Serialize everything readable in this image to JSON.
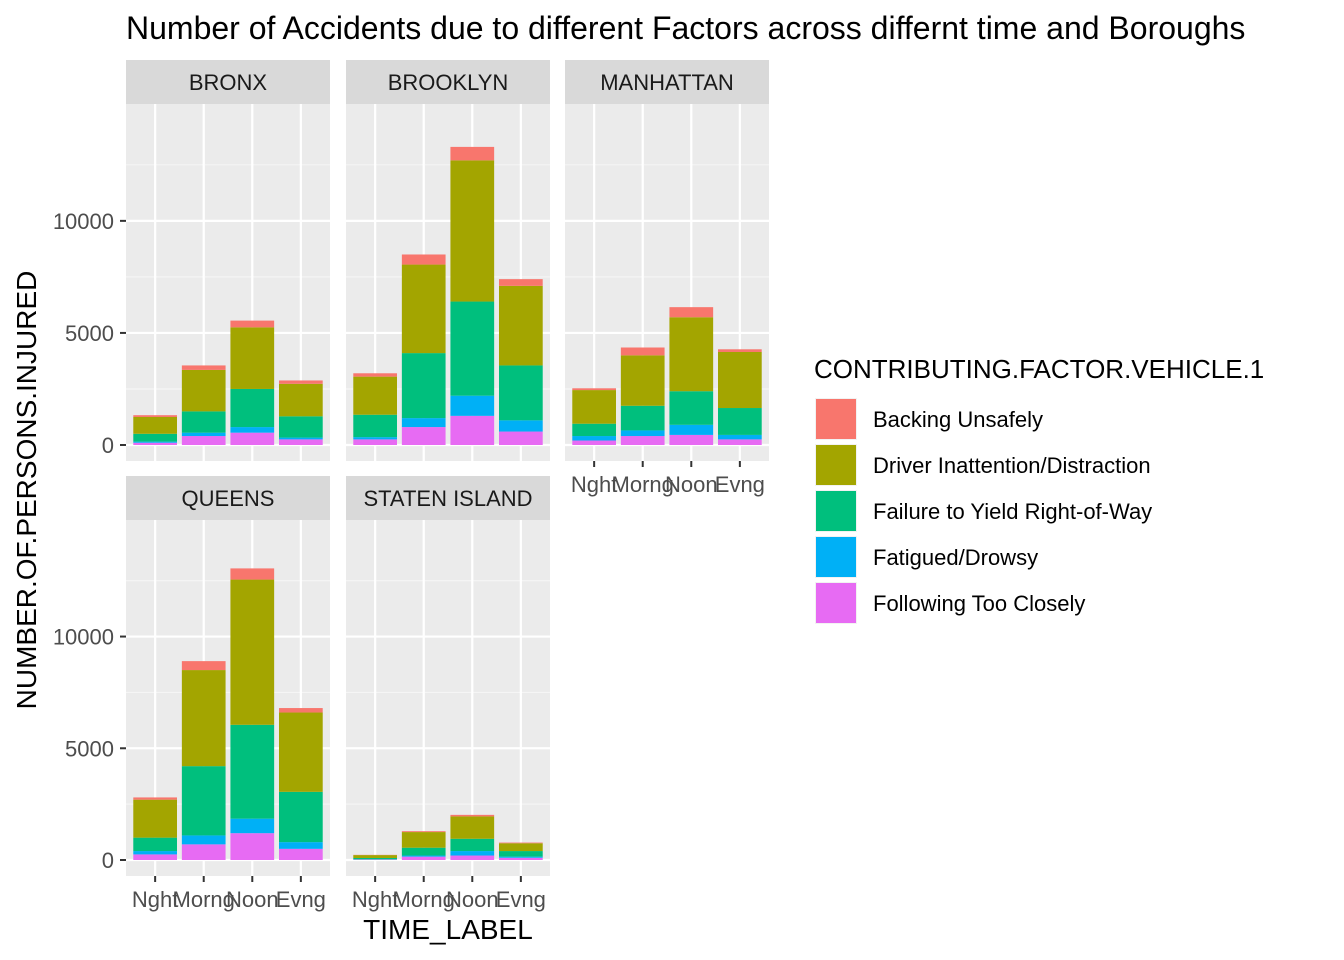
{
  "chart_data": {
    "type": "bar",
    "stacked": true,
    "faceted": true,
    "title": "Number of Accidents due to different Factors across differnt time and Boroughs",
    "xlabel": "TIME_LABEL",
    "ylabel": "NUMBER.OF.PERSONS.INJURED",
    "categories": [
      "Nght",
      "Morng",
      "Noon",
      "Evng"
    ],
    "ylim": [
      0,
      14500
    ],
    "yticks": [
      0,
      5000,
      10000
    ],
    "ytick_labels": [
      "0",
      "5000",
      "10000"
    ],
    "grid": true,
    "legend": {
      "title": "CONTRIBUTING.FACTOR.VEHICLE.1",
      "position": "right",
      "entries": [
        "Backing Unsafely",
        "Driver Inattention/Distraction",
        "Failure to Yield Right-of-Way",
        "Fatigued/Drowsy",
        "Following Too Closely"
      ]
    },
    "colors": {
      "Backing Unsafely": "#F8766D",
      "Driver Inattention/Distraction": "#A3A500",
      "Failure to Yield Right-of-Way": "#00BF7D",
      "Fatigued/Drowsy": "#00B0F6",
      "Following Too Closely": "#E76BF3"
    },
    "facets": [
      {
        "borough": "BRONX",
        "series": [
          {
            "name": "Following Too Closely",
            "values": [
              100,
              400,
              550,
              250
            ]
          },
          {
            "name": "Fatigued/Drowsy",
            "values": [
              50,
              150,
              250,
              80
            ]
          },
          {
            "name": "Failure to Yield Right-of-Way",
            "values": [
              350,
              950,
              1700,
              950
            ]
          },
          {
            "name": "Driver Inattention/Distraction",
            "values": [
              750,
              1850,
              2750,
              1450
            ]
          },
          {
            "name": "Backing Unsafely",
            "values": [
              80,
              200,
              300,
              150
            ]
          }
        ]
      },
      {
        "borough": "BROOKLYN",
        "series": [
          {
            "name": "Following Too Closely",
            "values": [
              250,
              800,
              1300,
              600
            ]
          },
          {
            "name": "Fatigued/Drowsy",
            "values": [
              100,
              400,
              900,
              500
            ]
          },
          {
            "name": "Failure to Yield Right-of-Way",
            "values": [
              1000,
              2900,
              4200,
              2450
            ]
          },
          {
            "name": "Driver Inattention/Distraction",
            "values": [
              1700,
              3950,
              6300,
              3550
            ]
          },
          {
            "name": "Backing Unsafely",
            "values": [
              150,
              450,
              600,
              300
            ]
          }
        ]
      },
      {
        "borough": "MANHATTAN",
        "series": [
          {
            "name": "Following Too Closely",
            "values": [
              200,
              400,
              450,
              250
            ]
          },
          {
            "name": "Fatigued/Drowsy",
            "values": [
              200,
              250,
              450,
              200
            ]
          },
          {
            "name": "Failure to Yield Right-of-Way",
            "values": [
              550,
              1100,
              1500,
              1200
            ]
          },
          {
            "name": "Driver Inattention/Distraction",
            "values": [
              1500,
              2250,
              3300,
              2500
            ]
          },
          {
            "name": "Backing Unsafely",
            "values": [
              80,
              350,
              450,
              120
            ]
          }
        ]
      },
      {
        "borough": "QUEENS",
        "series": [
          {
            "name": "Following Too Closely",
            "values": [
              250,
              700,
              1200,
              500
            ]
          },
          {
            "name": "Fatigued/Drowsy",
            "values": [
              150,
              400,
              650,
              300
            ]
          },
          {
            "name": "Failure to Yield Right-of-Way",
            "values": [
              600,
              3100,
              4200,
              2250
            ]
          },
          {
            "name": "Driver Inattention/Distraction",
            "values": [
              1700,
              4300,
              6500,
              3550
            ]
          },
          {
            "name": "Backing Unsafely",
            "values": [
              100,
              400,
              500,
              200
            ]
          }
        ]
      },
      {
        "borough": "STATEN ISLAND",
        "series": [
          {
            "name": "Following Too Closely",
            "values": [
              20,
              150,
              200,
              100
            ]
          },
          {
            "name": "Fatigued/Drowsy",
            "values": [
              10,
              50,
              200,
              50
            ]
          },
          {
            "name": "Failure to Yield Right-of-Way",
            "values": [
              60,
              350,
              550,
              250
            ]
          },
          {
            "name": "Driver Inattention/Distraction",
            "values": [
              130,
              700,
              1000,
              350
            ]
          },
          {
            "name": "Backing Unsafely",
            "values": [
              10,
              40,
              70,
              30
            ]
          }
        ]
      }
    ]
  }
}
